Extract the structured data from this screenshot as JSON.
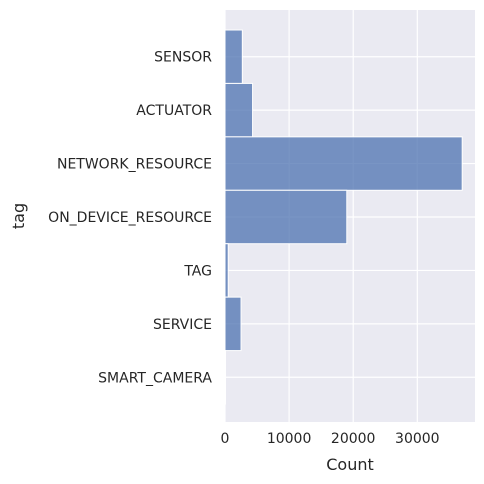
{
  "chart_data": {
    "type": "bar",
    "orientation": "horizontal",
    "categories": [
      "SENSOR",
      "ACTUATOR",
      "NETWORK_RESOURCE",
      "ON_DEVICE_RESOURCE",
      "TAG",
      "SERVICE",
      "SMART_CAMERA"
    ],
    "values": [
      2700,
      4300,
      37000,
      19000,
      500,
      2500,
      80
    ],
    "title": "",
    "xlabel": "Count",
    "ylabel": "tag",
    "xlim": [
      0,
      39000
    ],
    "xticks": [
      0,
      10000,
      20000,
      30000
    ],
    "xtick_labels": [
      "0",
      "10000",
      "20000",
      "30000"
    ],
    "grid": true,
    "colors": {
      "bar_fill": "#4c72b0",
      "bar_stroke": "#ffffff",
      "plot_background": "#eaeaf2",
      "grid": "#ffffff",
      "text": "#262626"
    }
  }
}
